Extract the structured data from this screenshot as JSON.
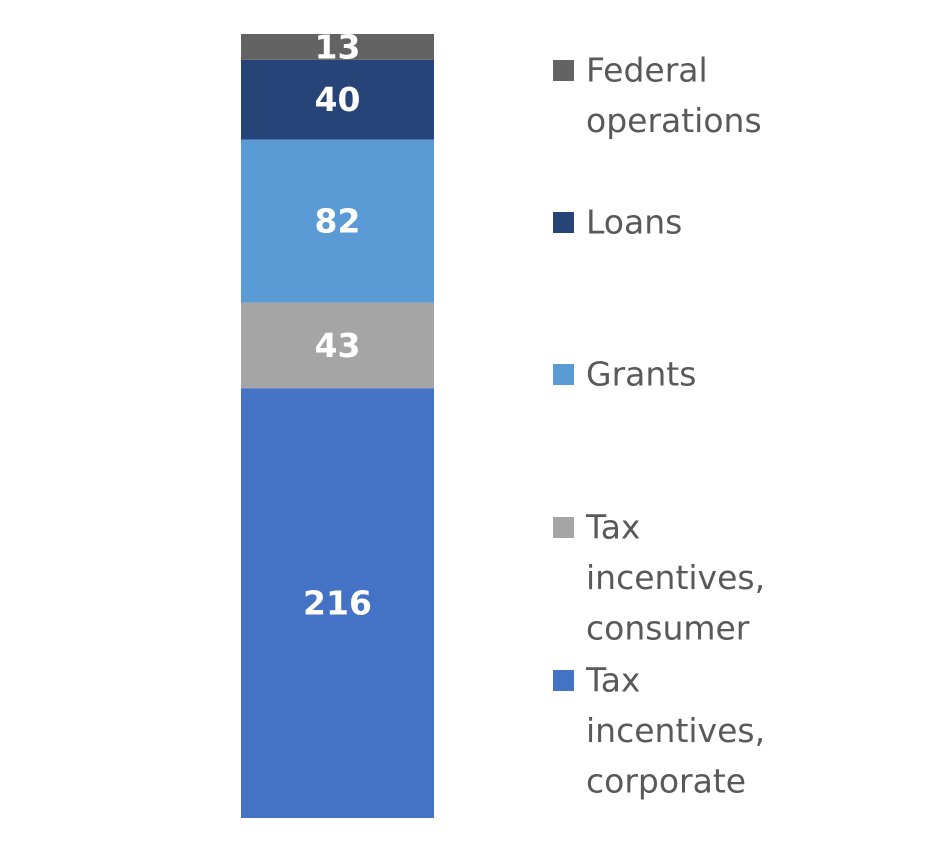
{
  "chart_data": {
    "type": "bar",
    "stacked": true,
    "categories": [
      ""
    ],
    "series": [
      {
        "name": "Tax incentives, corporate",
        "legend_lines": [
          "Tax",
          "incentives,",
          "corporate"
        ],
        "values": [
          216
        ],
        "color": "#4472C4"
      },
      {
        "name": "Tax incentives, consumer",
        "legend_lines": [
          "Tax",
          "incentives,",
          "consumer"
        ],
        "values": [
          43
        ],
        "color": "#A5A5A5"
      },
      {
        "name": "Grants",
        "legend_lines": [
          "Grants"
        ],
        "values": [
          82
        ],
        "color": "#5B9BD5"
      },
      {
        "name": "Loans",
        "legend_lines": [
          "Loans"
        ],
        "values": [
          40
        ],
        "color": "#264478"
      },
      {
        "name": "Federal operations",
        "legend_lines": [
          "Federal",
          "operations"
        ],
        "values": [
          13
        ],
        "color": "#636363"
      }
    ],
    "data_labels": true,
    "legend_position": "right",
    "grid": false,
    "title": "",
    "xlabel": "",
    "ylabel": ""
  }
}
